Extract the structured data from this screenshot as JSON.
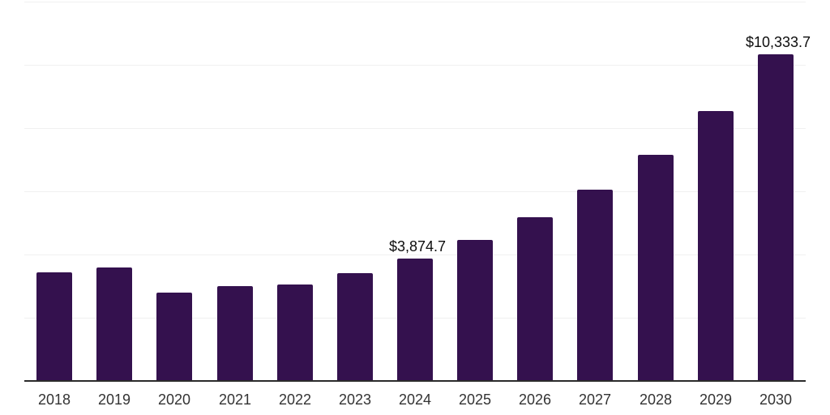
{
  "chart_data": {
    "type": "bar",
    "title": "",
    "xlabel": "",
    "ylabel": "",
    "legend": "none",
    "grid": "horizontal gridlines only, no y-axis tick labels",
    "ylim": [
      0,
      12000
    ],
    "gridline_step": 2000,
    "categories": [
      "2018",
      "2019",
      "2020",
      "2021",
      "2022",
      "2023",
      "2024",
      "2025",
      "2026",
      "2027",
      "2028",
      "2029",
      "2030"
    ],
    "values": [
      3435,
      3590,
      2795,
      3000,
      3050,
      3410,
      3874.7,
      4460,
      5180,
      6050,
      7155,
      8540,
      10333.7
    ],
    "data_labels": [
      {
        "category": "2024",
        "text": "$3,874.7"
      },
      {
        "category": "2030",
        "text": "$10,333.7"
      }
    ],
    "colors": {
      "bar": "#34114e",
      "gridline": "#f0f0f0",
      "axis_line": "#2b2b2b",
      "tick_label": "#333333",
      "data_label": "#0d0d0d",
      "background": "#ffffff"
    }
  }
}
